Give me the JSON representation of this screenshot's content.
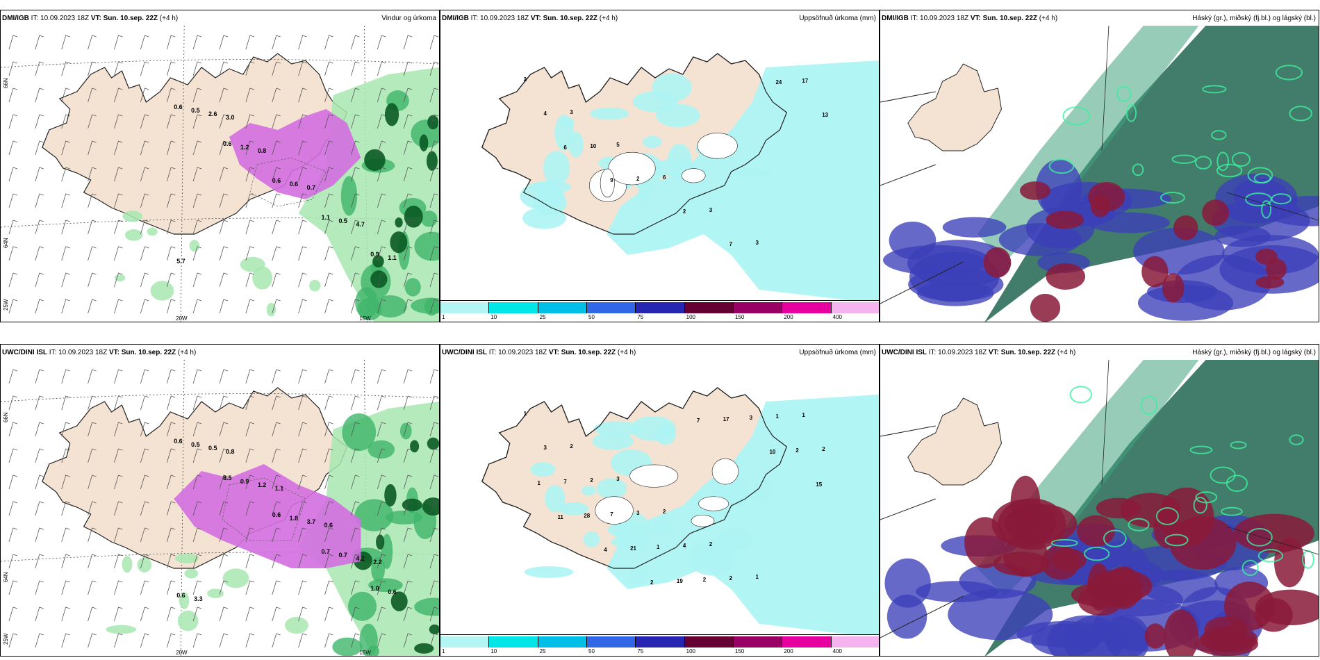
{
  "panels": [
    {
      "model": "DMI/IGB",
      "it": "IT: 10.09.2023 18Z",
      "vt": "VT: Sun. 10.sep. 22Z",
      "lead": "(+4 h)",
      "title": "Vindur og úrkoma",
      "ticks": {
        "lat_top": "66N",
        "lat_mid": "64N",
        "lat_bot": "25W",
        "lon_20": "20W",
        "lon_15": "15W"
      },
      "labels": [
        "0.6",
        "0.6",
        "0.6",
        "1.1",
        "0.9",
        "0.5",
        "1.2",
        "0.6",
        "0.5",
        "1.1",
        "2.6",
        "0.8",
        "0.7",
        "4.7",
        "5.7",
        "3.0"
      ]
    },
    {
      "model": "DMI/IGB",
      "it": "IT: 10.09.2023 18Z",
      "vt": "VT: Sun. 10.sep. 22Z",
      "lead": "(+4 h)",
      "title": "Uppsöfnuð úrkoma (mm)",
      "labels": [
        "2",
        "3",
        "5",
        "6",
        "3",
        "3",
        "17",
        "4",
        "10",
        "2",
        "2",
        "7",
        "24",
        "13",
        "6",
        "9"
      ]
    },
    {
      "model": "DMI/IGB",
      "it": "IT: 10.09.2023 18Z",
      "vt": "VT: Sun. 10.sep. 22Z",
      "lead": "(+4 h)",
      "title": "Háský (gr.), miðský (fj.bl.) og lágský (bl.)"
    },
    {
      "model": "UWC/DINI ISL",
      "it": "IT: 10.09.2023 18Z",
      "vt": "VT: Sun. 10.sep. 22Z",
      "lead": "(+4 h)",
      "title": "",
      "ticks": {
        "lat_top": "66N",
        "lat_mid": "64N",
        "lat_bot": "25W",
        "lon_20": "20W",
        "lon_15": "15W"
      },
      "labels": [
        "0.6",
        "8.5",
        "0.6",
        "0.7",
        "1.0",
        "0.5",
        "0.9",
        "1.8",
        "0.7",
        "0.6",
        "0.5",
        "1.2",
        "3.7",
        "4.2",
        "0.6",
        "0.8",
        "1.1",
        "0.6",
        "2.2",
        "3.3"
      ]
    },
    {
      "model": "UWC/DINI ISL",
      "it": "IT: 10.09.2023 18Z",
      "vt": "VT: Sun. 10.sep. 22Z",
      "lead": "(+4 h)",
      "title": "Uppsöfnuð úrkoma (mm)",
      "labels": [
        "1",
        "2",
        "3",
        "2",
        "2",
        "1",
        "1",
        "3",
        "2",
        "3",
        "4",
        "2",
        "1",
        "2",
        "7",
        "7",
        "1",
        "2",
        "3",
        "2",
        "1",
        "28",
        "21",
        "19",
        "17",
        "10",
        "15",
        "11",
        "4",
        "2",
        "7"
      ]
    },
    {
      "model": "UWC/DINI ISL",
      "it": "IT: 10.09.2023 18Z",
      "vt": "VT: Sun. 10.sep. 22Z",
      "lead": "(+4 h)",
      "title": "Háský (gr.), miðský (fj.bl.) og lágský (bl.)"
    }
  ],
  "colorbar": {
    "ticks": [
      "1",
      "10",
      "25",
      "50",
      "75",
      "100",
      "150",
      "200",
      "400"
    ],
    "colors": [
      "#b3f5f5",
      "#00e6e6",
      "#00bfe6",
      "#3366e6",
      "#2626b3",
      "#660033",
      "#990066",
      "#e600a0",
      "#f5b3f0"
    ]
  },
  "colors": {
    "land": "#f4e3d3",
    "sea": "#ffffff",
    "precip_light": "#a8e8b0",
    "precip_mid": "#3fb56a",
    "precip_dark": "#0a5a22",
    "snow": "#d36ee0",
    "accum": "#aef4f4",
    "high_cloud": "#2d6e5a",
    "mid_cloud": "#3b3fb8",
    "low_cloud": "#8a1a3a"
  }
}
